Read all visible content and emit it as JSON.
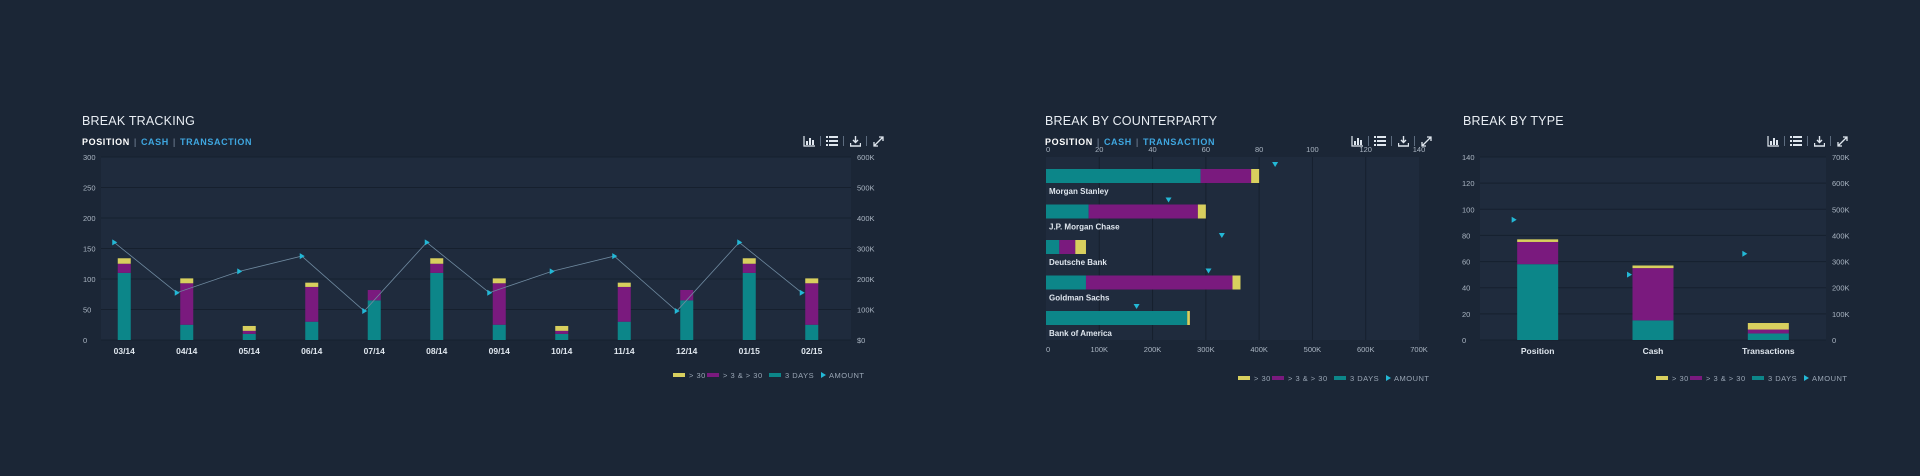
{
  "toolbar_icons": [
    "bar-chart-icon",
    "list-icon",
    "download-icon",
    "expand-icon"
  ],
  "colors": {
    "over30": "#d8cf5e",
    "d3to30": "#7a1a7e",
    "d3": "#0c8689",
    "amount": "#23b8d6",
    "plot_bg": "#1f2b3d",
    "page_bg": "#1b2636"
  },
  "legend": [
    "> 30",
    "> 3 & > 30",
    "3 DAYS",
    "AMOUNT"
  ],
  "panels": {
    "tracking": {
      "title": "BREAK TRACKING",
      "tabs": [
        "POSITION",
        "CASH",
        "TRANSACTION"
      ]
    },
    "counterparty": {
      "title": "BREAK BY COUNTERPARTY",
      "tabs": [
        "POSITION",
        "CASH",
        "TRANSACTION"
      ]
    },
    "type": {
      "title": "BREAK BY TYPE"
    }
  },
  "chart_data": [
    {
      "id": "tracking",
      "type": "bar",
      "stacked": true,
      "orientation": "vertical",
      "categories": [
        "03/14",
        "04/14",
        "05/14",
        "06/14",
        "07/14",
        "08/14",
        "09/14",
        "10/14",
        "11/14",
        "12/14",
        "01/15",
        "02/15"
      ],
      "series": [
        {
          "name": "3 DAYS",
          "values": [
            110,
            25,
            10,
            30,
            65,
            110,
            25,
            10,
            30,
            65,
            110,
            25
          ]
        },
        {
          "name": "> 3 & > 30",
          "values": [
            15,
            68,
            5,
            57,
            17,
            15,
            68,
            5,
            57,
            17,
            15,
            68
          ]
        },
        {
          "name": "> 30",
          "values": [
            9,
            8,
            8,
            7,
            0,
            9,
            8,
            8,
            7,
            0,
            9,
            8
          ]
        }
      ],
      "line_series": {
        "name": "AMOUNT",
        "axis": "right",
        "values": [
          320000,
          155000,
          225000,
          275000,
          95000,
          320000,
          155000,
          225000,
          275000,
          95000,
          320000,
          155000
        ]
      },
      "yticks_left": [
        "300",
        "250",
        "200",
        "150",
        "100",
        "50",
        "0"
      ],
      "yticks_right": [
        "600K",
        "500K",
        "400K",
        "300K",
        "200K",
        "100K",
        "$0"
      ],
      "ylim": [
        0,
        300
      ],
      "ylim_right": [
        0,
        600000
      ]
    },
    {
      "id": "counterparty",
      "type": "bar",
      "stacked": true,
      "orientation": "horizontal",
      "categories": [
        "Morgan Stanley",
        "J.P. Morgan Chase",
        "Deutsche Bank",
        "Goldman Sachs",
        "Bank of America"
      ],
      "series": [
        {
          "name": "3 DAYS",
          "values": [
            58,
            16,
            5,
            15,
            53
          ]
        },
        {
          "name": "> 3 & > 30",
          "values": [
            19,
            41,
            6,
            55,
            0
          ]
        },
        {
          "name": "> 30",
          "values": [
            3,
            3,
            4,
            3,
            1
          ]
        }
      ],
      "line_series": {
        "name": "AMOUNT",
        "axis": "bottom",
        "values": [
          430000,
          230000,
          330000,
          305000,
          170000
        ]
      },
      "xticks_top": [
        "0",
        "20",
        "40",
        "60",
        "80",
        "100",
        "120",
        "140"
      ],
      "xticks_bottom": [
        "0",
        "100K",
        "200K",
        "300K",
        "400K",
        "500K",
        "600K",
        "700K"
      ],
      "xlim": [
        0,
        140
      ],
      "xlim_bottom": [
        0,
        700000
      ]
    },
    {
      "id": "type",
      "type": "bar",
      "stacked": true,
      "orientation": "vertical",
      "categories": [
        "Position",
        "Cash",
        "Transactions"
      ],
      "series": [
        {
          "name": "3 DAYS",
          "values": [
            58,
            15,
            5
          ]
        },
        {
          "name": "> 3 & > 30",
          "values": [
            17,
            40,
            3
          ]
        },
        {
          "name": "> 30",
          "values": [
            2,
            2,
            5
          ]
        }
      ],
      "line_series": {
        "name": "AMOUNT",
        "axis": "right",
        "values": [
          460000,
          250000,
          330000
        ]
      },
      "yticks_left": [
        "140",
        "120",
        "100",
        "80",
        "60",
        "40",
        "20",
        "0"
      ],
      "yticks_right": [
        "700K",
        "600K",
        "500K",
        "400K",
        "300K",
        "200K",
        "100K",
        "0"
      ],
      "ylim": [
        0,
        140
      ],
      "ylim_right": [
        0,
        700000
      ]
    }
  ]
}
